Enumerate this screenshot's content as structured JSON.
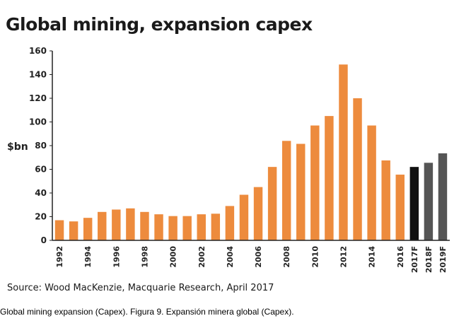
{
  "chart_data": {
    "type": "bar",
    "title": "Global mining, expansion capex",
    "ylabel": "$bn",
    "xlabel": "",
    "ylim": [
      0,
      160
    ],
    "yticks": [
      0,
      20,
      40,
      60,
      80,
      100,
      120,
      140,
      160
    ],
    "grid": false,
    "categories": [
      "1992",
      "1993",
      "1994",
      "1995",
      "1996",
      "1997",
      "1998",
      "1999",
      "2000",
      "2001",
      "2002",
      "2003",
      "2004",
      "2005",
      "2006",
      "2007",
      "2008",
      "2009",
      "2010",
      "2011",
      "2012",
      "2013",
      "2014",
      "2015",
      "2016",
      "2017F",
      "2018F",
      "2019F"
    ],
    "category_labels": [
      "1992",
      "",
      "1994",
      "",
      "1996",
      "",
      "1998",
      "",
      "2000",
      "",
      "2002",
      "",
      "2004",
      "",
      "2006",
      "",
      "2008",
      "",
      "2010",
      "",
      "2012",
      "",
      "2014",
      "",
      "2016",
      "2017F",
      "2018F",
      "2019F"
    ],
    "values": [
      17,
      16,
      19,
      24,
      26,
      27,
      24,
      22,
      20.5,
      20.5,
      22,
      22.5,
      29,
      38.5,
      45,
      62,
      84,
      81.5,
      97,
      105,
      148.5,
      120,
      97,
      67.5,
      55.5,
      62,
      65.5,
      73.5
    ],
    "bar_colors": [
      "#ED8B3D",
      "#ED8B3D",
      "#ED8B3D",
      "#ED8B3D",
      "#ED8B3D",
      "#ED8B3D",
      "#ED8B3D",
      "#ED8B3D",
      "#ED8B3D",
      "#ED8B3D",
      "#ED8B3D",
      "#ED8B3D",
      "#ED8B3D",
      "#ED8B3D",
      "#ED8B3D",
      "#ED8B3D",
      "#ED8B3D",
      "#ED8B3D",
      "#ED8B3D",
      "#ED8B3D",
      "#ED8B3D",
      "#ED8B3D",
      "#ED8B3D",
      "#ED8B3D",
      "#ED8B3D",
      "#111111",
      "#555555",
      "#555555"
    ]
  },
  "source": "Source: Wood MacKenzie, Macquarie Research, April 2017",
  "caption": "Global mining expansion (Capex). Figura 9. Expansión minera global (Capex)."
}
